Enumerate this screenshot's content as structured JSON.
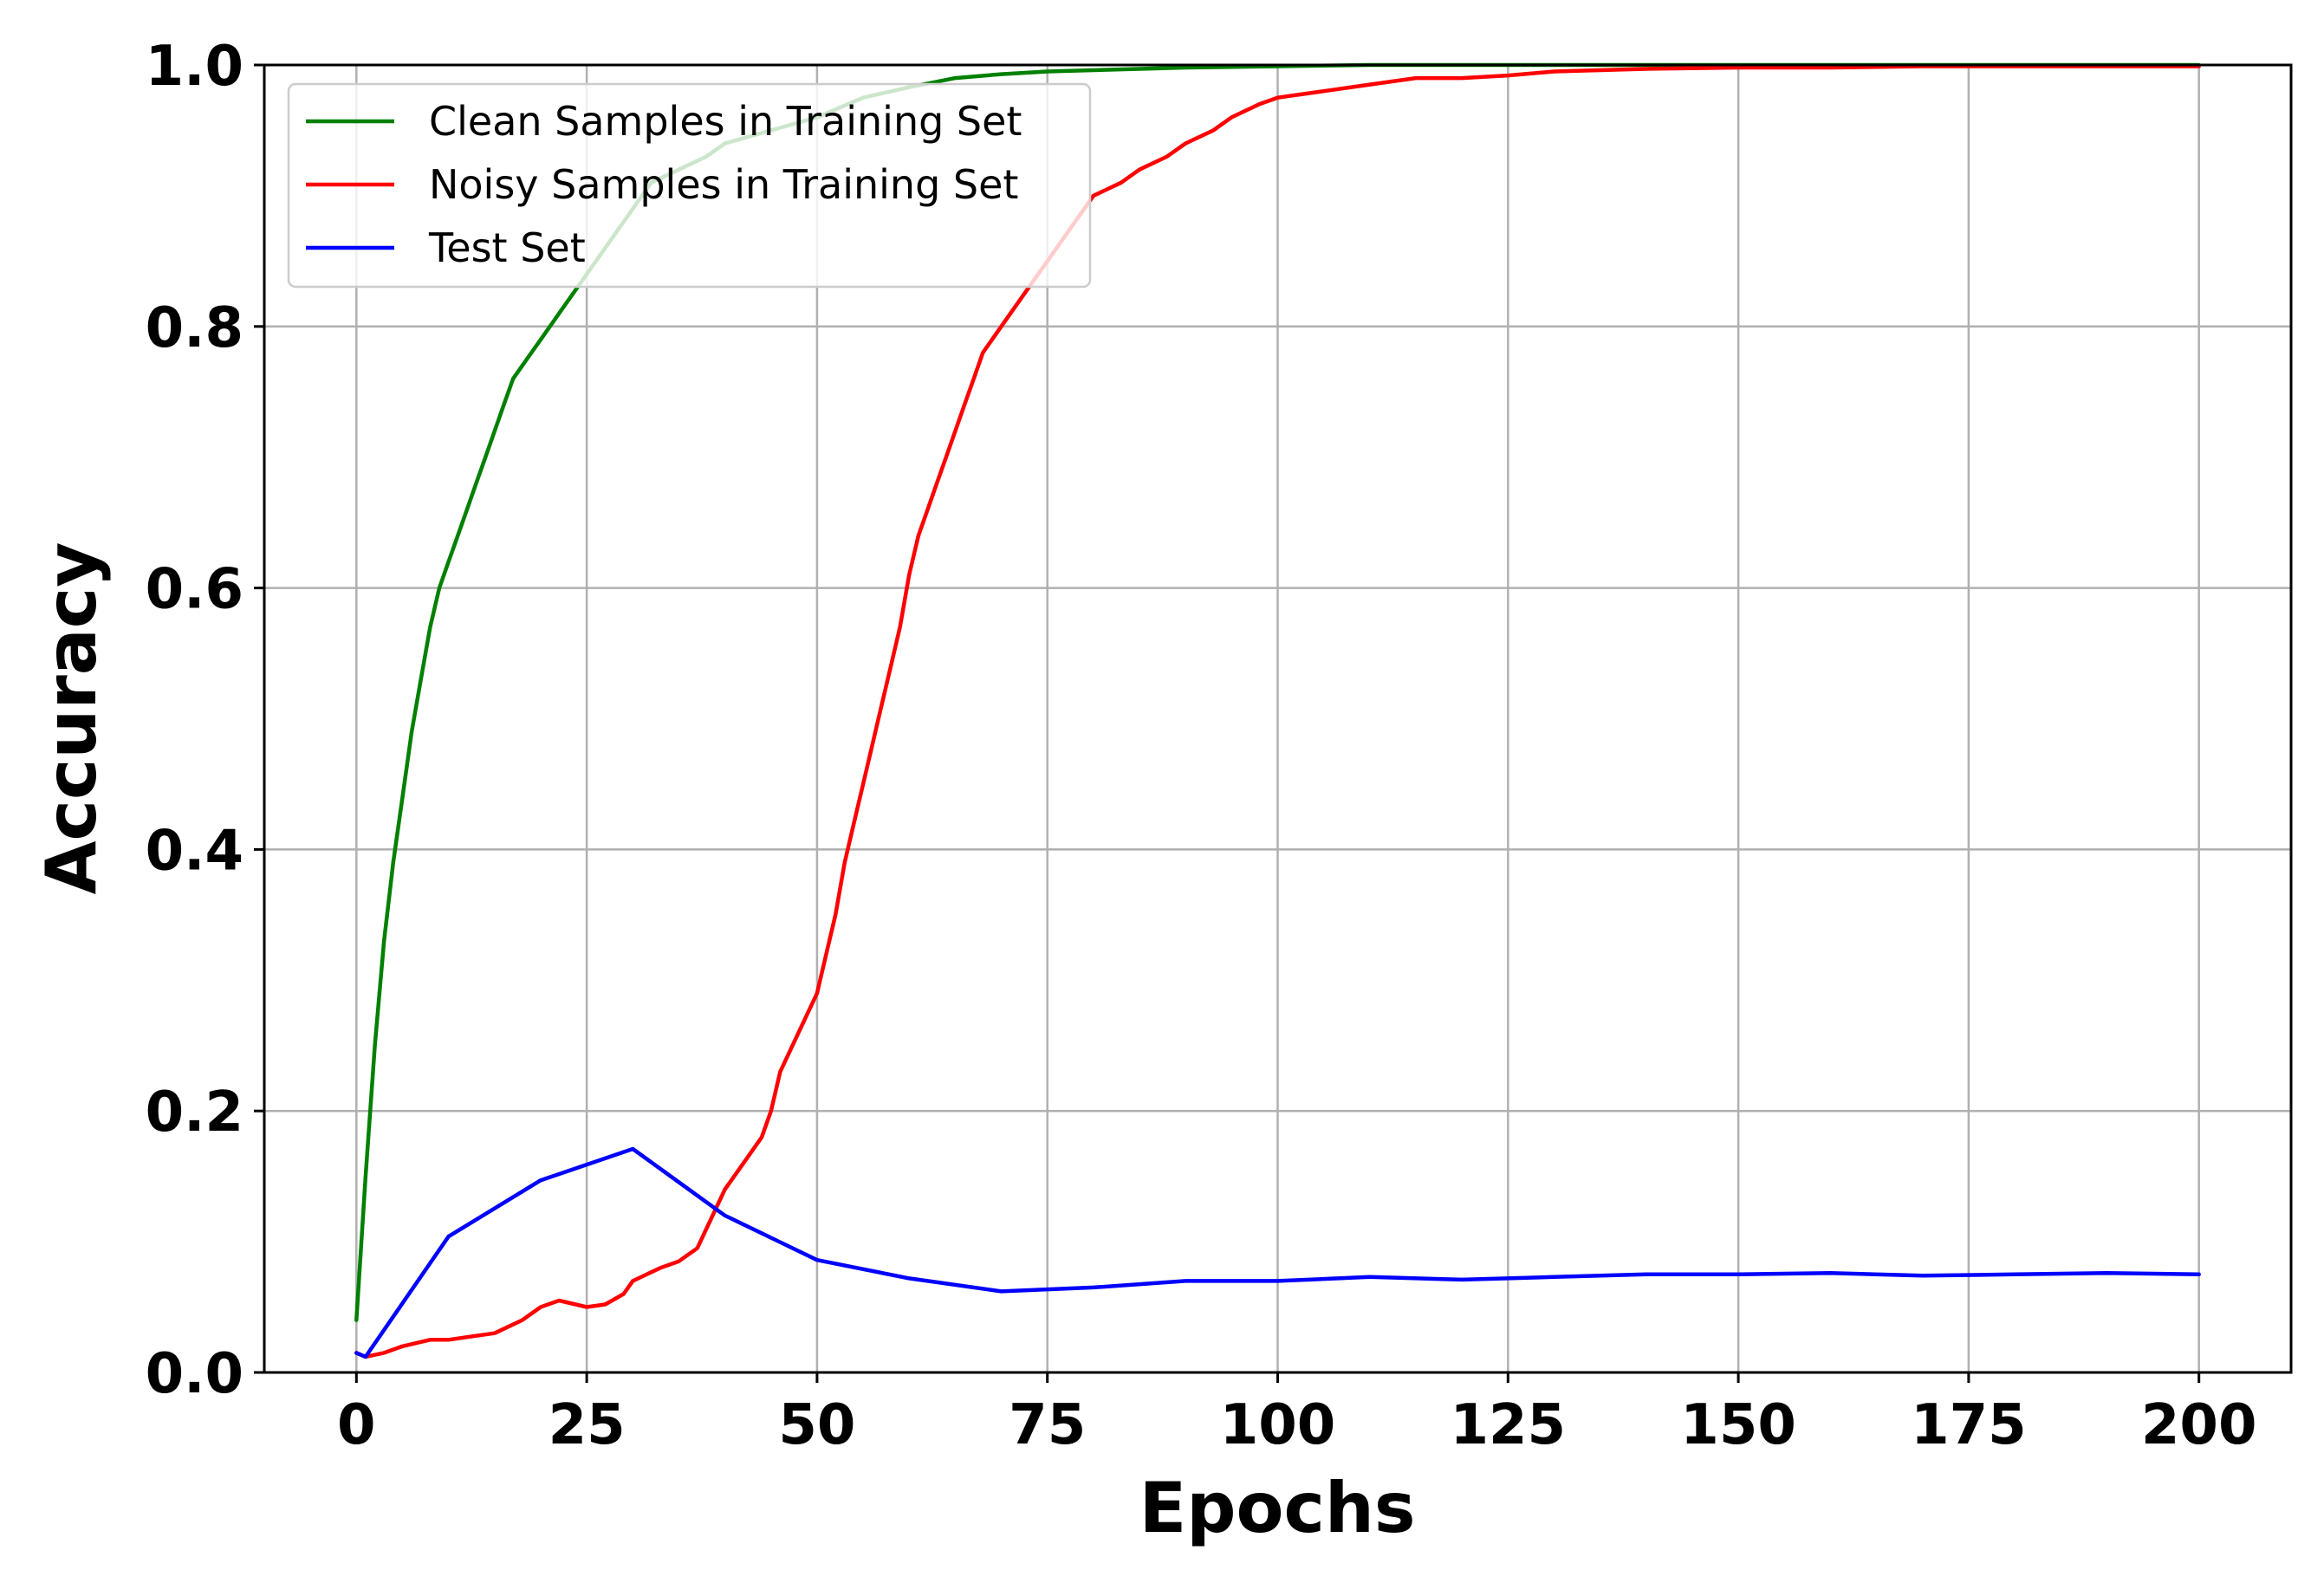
{
  "chart_data": {
    "type": "line",
    "title": "",
    "xlabel": "Epochs",
    "ylabel": "Accuracy",
    "xlim": [
      -10,
      210
    ],
    "ylim": [
      0.0,
      1.0
    ],
    "xticks": [
      0,
      25,
      50,
      75,
      100,
      125,
      150,
      175,
      200
    ],
    "yticks": [
      0.0,
      0.2,
      0.4,
      0.6,
      0.8,
      1.0
    ],
    "xtick_labels": [
      "0",
      "25",
      "50",
      "75",
      "100",
      "125",
      "150",
      "175",
      "200"
    ],
    "ytick_labels": [
      "0.0",
      "0.2",
      "0.4",
      "0.6",
      "0.8",
      "1.0"
    ],
    "grid": true,
    "legend_position": "top-left",
    "series": [
      {
        "name": "Clean Samples in Training Set",
        "color": "#008000",
        "x": [
          0,
          1,
          2,
          3,
          4,
          5,
          6,
          7,
          8,
          9,
          10,
          11,
          12,
          13,
          14,
          15,
          16,
          17,
          18,
          19,
          20,
          22,
          24,
          26,
          28,
          30,
          32,
          35,
          38,
          40,
          45,
          50,
          55,
          60,
          65,
          70,
          75,
          80,
          85,
          90,
          100,
          110,
          120,
          130,
          140,
          150,
          160,
          170,
          180,
          190,
          200
        ],
        "y": [
          0.04,
          0.15,
          0.25,
          0.33,
          0.39,
          0.44,
          0.49,
          0.53,
          0.57,
          0.6,
          0.62,
          0.64,
          0.66,
          0.68,
          0.7,
          0.72,
          0.74,
          0.76,
          0.77,
          0.78,
          0.79,
          0.81,
          0.83,
          0.85,
          0.87,
          0.89,
          0.91,
          0.92,
          0.93,
          0.94,
          0.95,
          0.96,
          0.975,
          0.983,
          0.99,
          0.993,
          0.995,
          0.996,
          0.997,
          0.998,
          0.999,
          1.0,
          1.0,
          1.0,
          1.0,
          1.0,
          1.0,
          1.0,
          1.0,
          1.0,
          1.0
        ]
      },
      {
        "name": "Noisy Samples in Training Set",
        "color": "#ff0000",
        "x": [
          0,
          1,
          3,
          5,
          8,
          10,
          13,
          15,
          18,
          20,
          22,
          25,
          27,
          29,
          30,
          33,
          35,
          37,
          38,
          40,
          42,
          44,
          45,
          46,
          48,
          50,
          51,
          52,
          53,
          54,
          55,
          56,
          57,
          58,
          59,
          60,
          61,
          62,
          63,
          64,
          65,
          66,
          67,
          68,
          69,
          70,
          72,
          75,
          78,
          80,
          83,
          85,
          88,
          90,
          93,
          95,
          98,
          100,
          105,
          110,
          115,
          120,
          125,
          130,
          140,
          150,
          160,
          170,
          180,
          190,
          200
        ],
        "y": [
          0.015,
          0.012,
          0.015,
          0.02,
          0.025,
          0.025,
          0.028,
          0.03,
          0.04,
          0.05,
          0.055,
          0.05,
          0.052,
          0.06,
          0.07,
          0.08,
          0.085,
          0.095,
          0.11,
          0.14,
          0.16,
          0.18,
          0.2,
          0.23,
          0.26,
          0.29,
          0.32,
          0.35,
          0.39,
          0.42,
          0.45,
          0.48,
          0.51,
          0.54,
          0.57,
          0.61,
          0.64,
          0.66,
          0.68,
          0.7,
          0.72,
          0.74,
          0.76,
          0.78,
          0.79,
          0.8,
          0.82,
          0.85,
          0.88,
          0.9,
          0.91,
          0.92,
          0.93,
          0.94,
          0.95,
          0.96,
          0.97,
          0.975,
          0.98,
          0.985,
          0.99,
          0.99,
          0.992,
          0.995,
          0.997,
          0.998,
          0.998,
          0.999,
          0.999,
          0.999,
          0.999
        ]
      },
      {
        "name": "Test Set",
        "color": "#0000ff",
        "x": [
          0,
          1,
          10,
          20,
          30,
          40,
          50,
          60,
          70,
          80,
          90,
          100,
          110,
          120,
          130,
          140,
          150,
          160,
          170,
          180,
          190,
          200
        ],
        "y": [
          0.015,
          0.012,
          0.104,
          0.147,
          0.171,
          0.12,
          0.086,
          0.072,
          0.062,
          0.065,
          0.07,
          0.07,
          0.073,
          0.071,
          0.073,
          0.075,
          0.075,
          0.076,
          0.074,
          0.075,
          0.076,
          0.075
        ]
      }
    ]
  }
}
